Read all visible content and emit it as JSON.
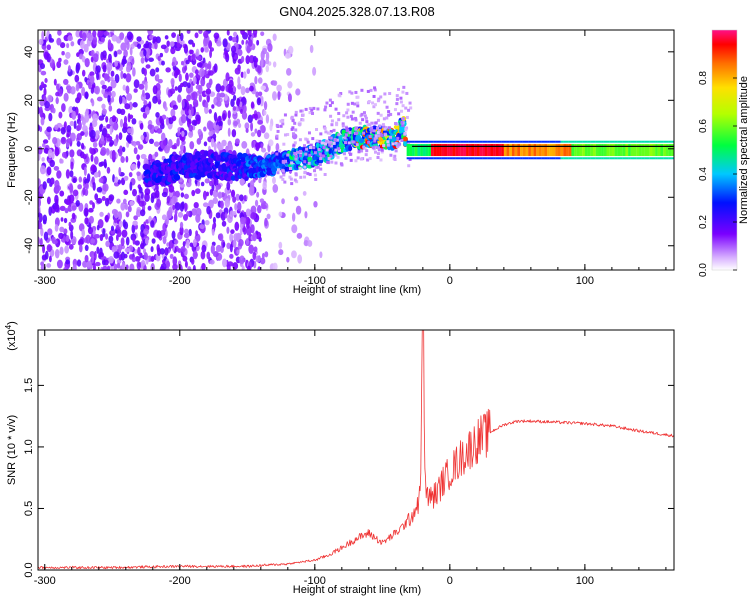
{
  "title": "GN04.2025.328.07.13.R08",
  "chart_data": [
    {
      "type": "heatmap",
      "xlabel": "Height of straight line (km)",
      "ylabel": "Frequency (Hz)",
      "xlim": [
        -305,
        166
      ],
      "ylim": [
        -50,
        49
      ],
      "xticks": [
        -300,
        -200,
        -100,
        0,
        100
      ],
      "yticks": [
        -40,
        -20,
        0,
        20,
        40
      ],
      "colorbar": {
        "label": "Normalized spectral amplitude",
        "range": [
          0,
          1
        ],
        "ticks": [
          "0.0",
          "0.2",
          "0.4",
          "0.6",
          "0.8"
        ],
        "tick_values": [
          0.0,
          0.2,
          0.4,
          0.6,
          0.8
        ]
      },
      "ridge": {
        "x": [
          -220,
          -200,
          -180,
          -160,
          -140,
          -120,
          -100,
          -80,
          -60,
          -40,
          -35,
          -30,
          -10,
          0,
          40,
          80,
          120,
          166
        ],
        "y": [
          -10,
          -8,
          -6,
          -8,
          -7,
          -5,
          -3,
          3,
          5,
          4,
          11,
          -3,
          0,
          0,
          0,
          0,
          0.5,
          1
        ]
      },
      "grid": false
    },
    {
      "type": "line",
      "xlabel": "Height of straight line (km)",
      "ylabel": "SNR (10 * v/v)",
      "scale_label": "(x10",
      "scale_exp": "4",
      "xlim": [
        -305,
        166
      ],
      "ylim": [
        0,
        1.95
      ],
      "xticks": [
        -300,
        -200,
        -100,
        0,
        100
      ],
      "yticks": [
        "0.0",
        "0.5",
        "1.0",
        "1.5"
      ],
      "ytick_values": [
        0.0,
        0.5,
        1.0,
        1.5
      ],
      "color": "#ef3333",
      "series": [
        {
          "x": [
            -305,
            -250,
            -200,
            -150,
            -120,
            -100,
            -90,
            -80,
            -70,
            -60,
            -50,
            -40,
            -35,
            -30,
            -25,
            -22,
            -20,
            -18,
            -15,
            -10,
            -5,
            0,
            10,
            20,
            30,
            40,
            50,
            60,
            80,
            100,
            120,
            140,
            166
          ],
          "y": [
            0.02,
            0.02,
            0.03,
            0.03,
            0.05,
            0.08,
            0.12,
            0.18,
            0.25,
            0.3,
            0.22,
            0.3,
            0.35,
            0.42,
            0.5,
            0.6,
            1.9,
            0.65,
            0.58,
            0.62,
            0.72,
            0.8,
            0.93,
            1.05,
            1.12,
            1.18,
            1.21,
            1.21,
            1.2,
            1.19,
            1.17,
            1.13,
            1.09
          ]
        }
      ],
      "grid": false
    }
  ]
}
